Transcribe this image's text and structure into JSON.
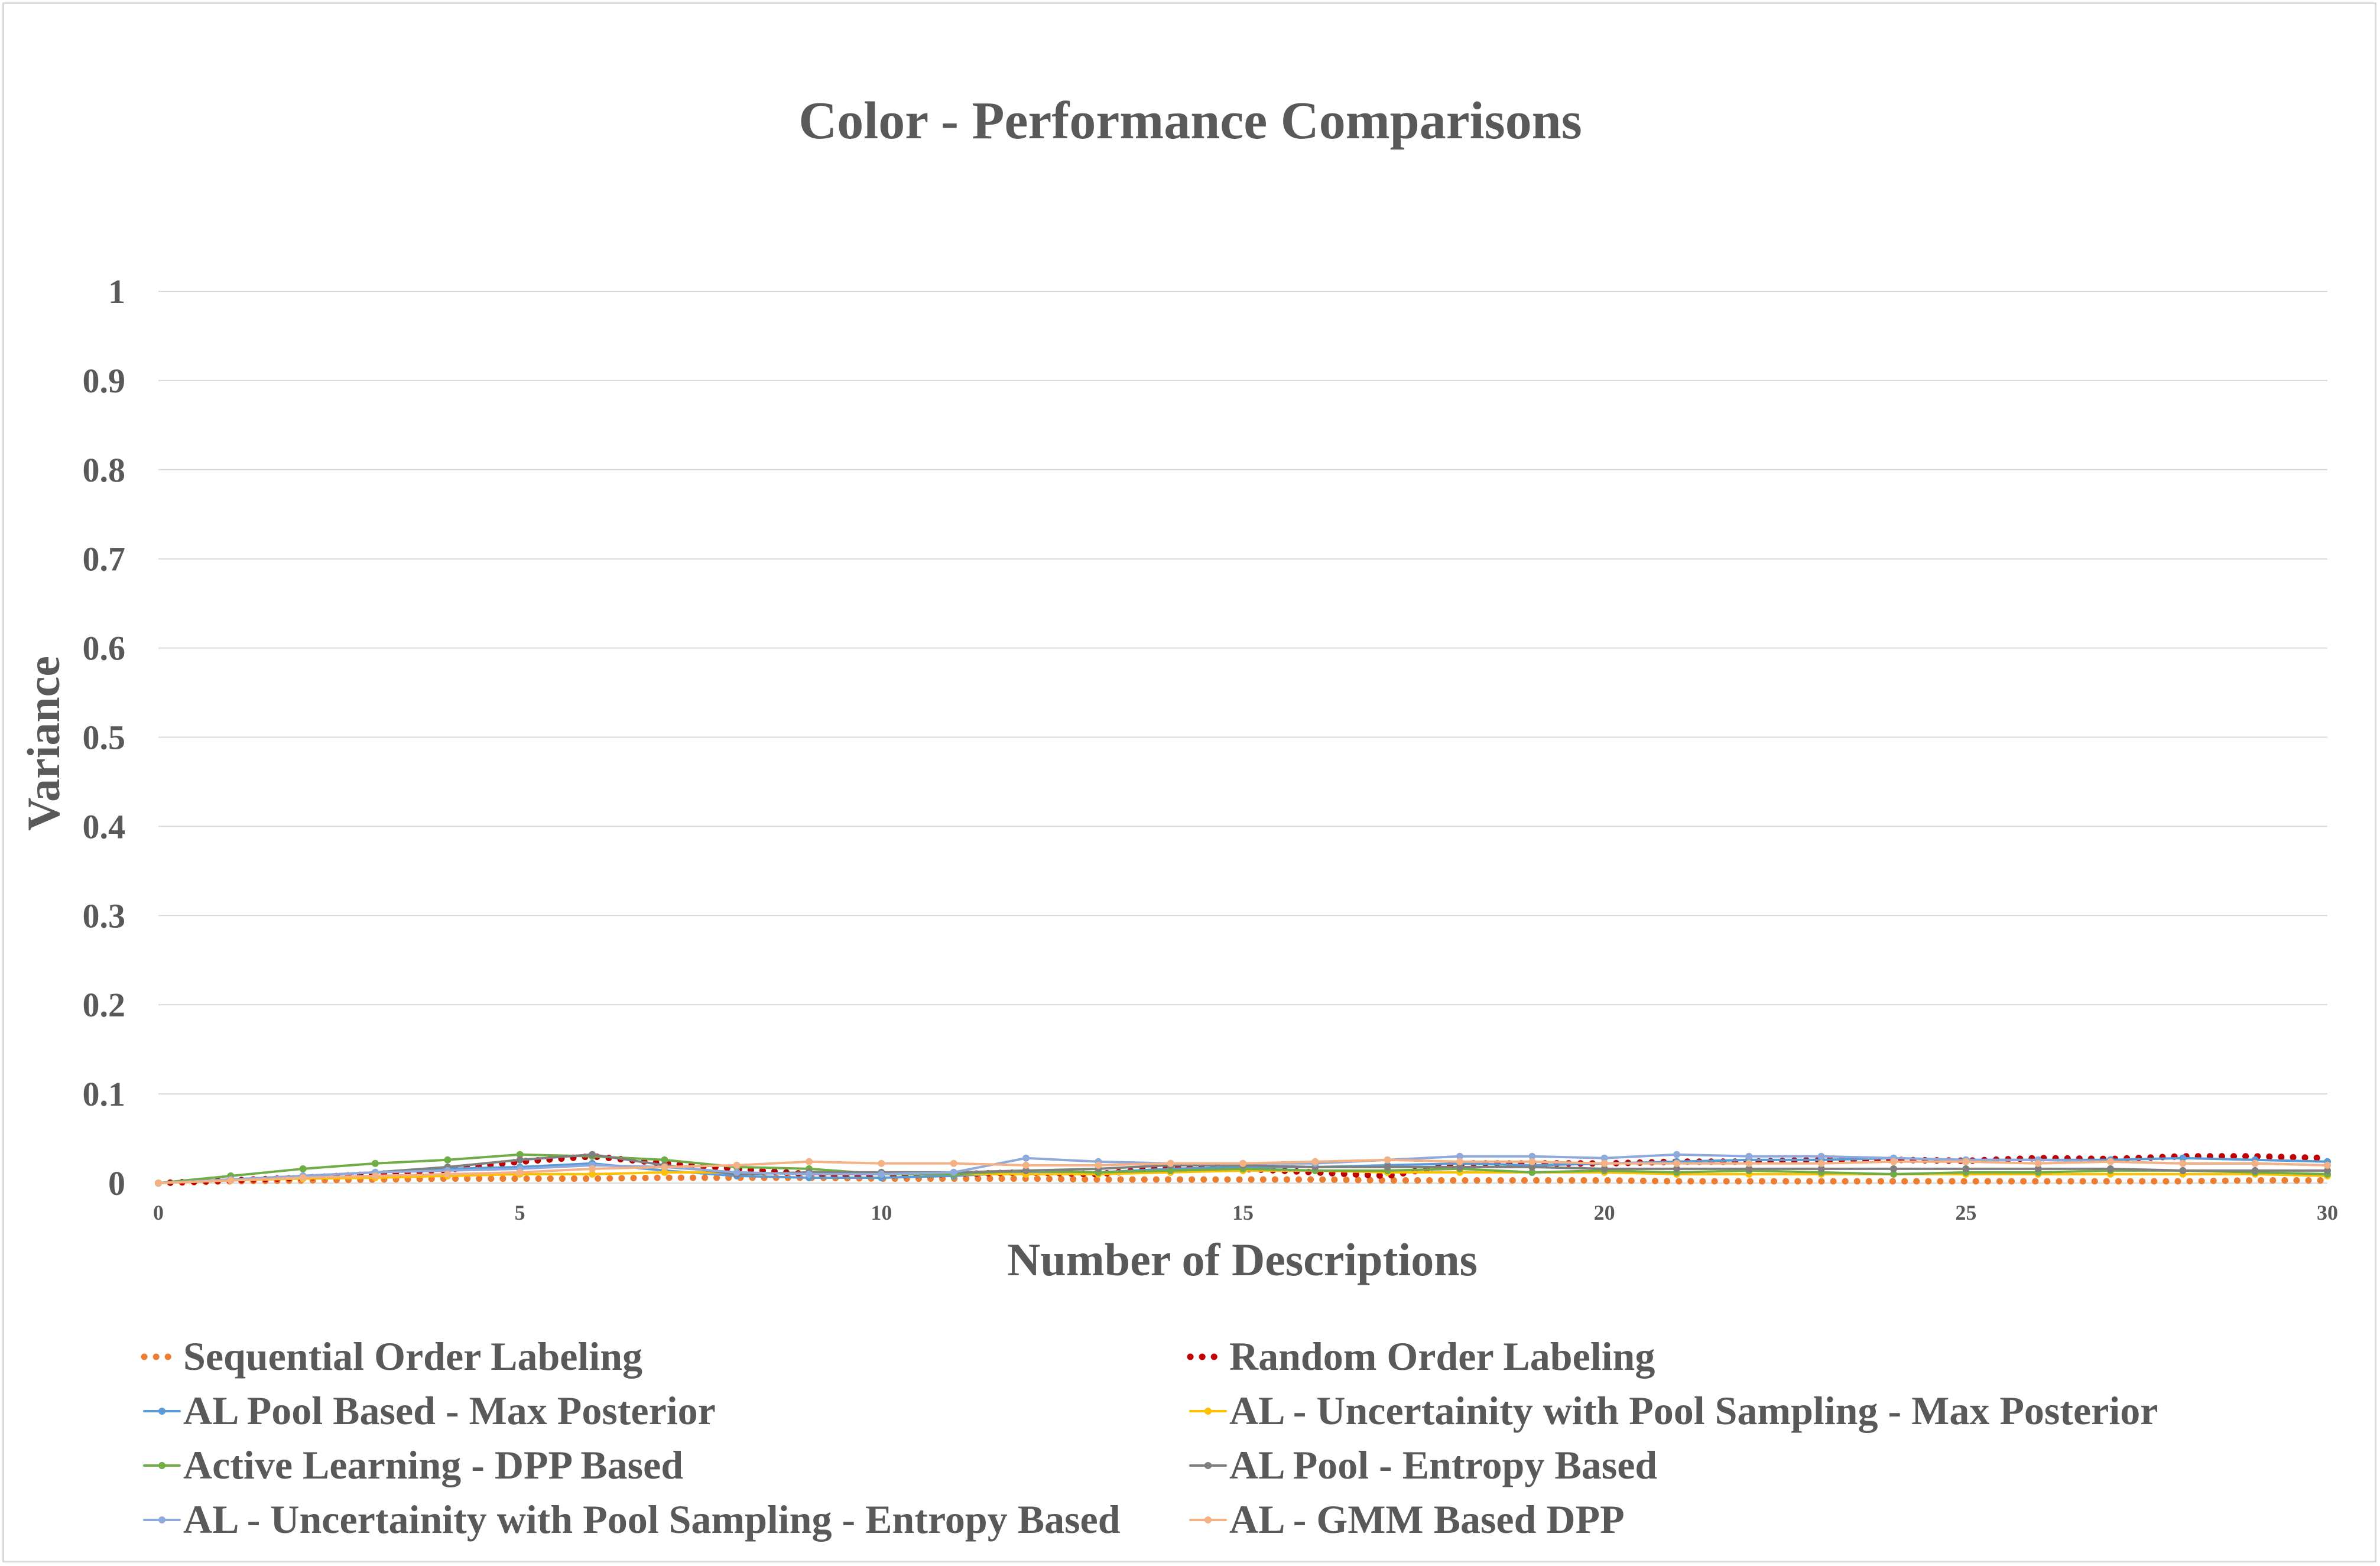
{
  "chart_data": {
    "type": "line",
    "title": "Color - Performance Comparisons",
    "xlabel": "Number of Descriptions",
    "ylabel": "Variance",
    "xlim": [
      0,
      30
    ],
    "ylim": [
      0,
      1
    ],
    "x_ticks": [
      "0",
      "5",
      "10",
      "15",
      "20",
      "25",
      "30"
    ],
    "y_ticks": [
      "0",
      "0.1",
      "0.2",
      "0.3",
      "0.4",
      "0.5",
      "0.6",
      "0.7",
      "0.8",
      "0.9",
      "1"
    ],
    "grid": true,
    "legend_position": "bottom",
    "x": [
      0,
      1,
      2,
      3,
      4,
      5,
      6,
      7,
      8,
      9,
      10,
      11,
      12,
      13,
      14,
      15,
      16,
      17,
      18,
      19,
      20,
      21,
      22,
      23,
      24,
      25,
      26,
      27,
      28,
      29,
      30
    ],
    "series": [
      {
        "name": "Sequential Order Labeling",
        "color": "#ED7D31",
        "style": "dotted",
        "values": [
          0,
          0.002,
          0.003,
          0.004,
          0.005,
          0.005,
          0.005,
          0.006,
          0.006,
          0.006,
          0.005,
          0.005,
          0.005,
          0.004,
          0.004,
          0.004,
          0.004,
          0.003,
          0.003,
          0.003,
          0.003,
          0.002,
          0.002,
          0.002,
          0.002,
          0.002,
          0.002,
          0.002,
          0.002,
          0.003,
          0.003
        ]
      },
      {
        "name": "Random Order Labeling",
        "color": "#C00000",
        "style": "dotted",
        "values": [
          0,
          0.003,
          0.006,
          0.01,
          0.015,
          0.024,
          0.03,
          0.022,
          0.016,
          0.01,
          0.008,
          0.01,
          0.012,
          0.01,
          0.018,
          0.016,
          0.012,
          0.008,
          0.022,
          0.022,
          0.022,
          0.024,
          0.024,
          0.026,
          0.026,
          0.025,
          0.028,
          0.027,
          0.03,
          0.03,
          0.028
        ]
      },
      {
        "name": "AL Pool Based - Max Posterior",
        "color": "#5B9BD5",
        "style": "solid",
        "values": [
          0,
          0.004,
          0.008,
          0.012,
          0.016,
          0.018,
          0.022,
          0.014,
          0.008,
          0.006,
          0.006,
          0.008,
          0.012,
          0.012,
          0.016,
          0.018,
          0.018,
          0.02,
          0.022,
          0.02,
          0.022,
          0.024,
          0.026,
          0.026,
          0.028,
          0.026,
          0.026,
          0.026,
          0.028,
          0.026,
          0.024
        ]
      },
      {
        "name": "AL - Uncertainity with Pool Sampling - Max Posterior",
        "color": "#FFC000",
        "style": "solid",
        "values": [
          0,
          0.003,
          0.005,
          0.006,
          0.008,
          0.01,
          0.01,
          0.012,
          0.012,
          0.01,
          0.01,
          0.01,
          0.01,
          0.01,
          0.012,
          0.014,
          0.014,
          0.012,
          0.012,
          0.012,
          0.012,
          0.01,
          0.01,
          0.01,
          0.01,
          0.01,
          0.01,
          0.01,
          0.01,
          0.01,
          0.008
        ]
      },
      {
        "name": "Active Learning - DPP Based",
        "color": "#70AD47",
        "style": "solid",
        "values": [
          0,
          0.008,
          0.016,
          0.022,
          0.026,
          0.032,
          0.03,
          0.026,
          0.018,
          0.016,
          0.01,
          0.01,
          0.014,
          0.012,
          0.014,
          0.016,
          0.014,
          0.014,
          0.016,
          0.012,
          0.014,
          0.012,
          0.014,
          0.012,
          0.01,
          0.012,
          0.012,
          0.014,
          0.014,
          0.012,
          0.01
        ]
      },
      {
        "name": "AL Pool - Entropy Based",
        "color": "#7F7F7F",
        "style": "solid",
        "values": [
          0,
          0.004,
          0.008,
          0.012,
          0.018,
          0.026,
          0.032,
          0.02,
          0.01,
          0.012,
          0.012,
          0.012,
          0.014,
          0.016,
          0.02,
          0.02,
          0.018,
          0.018,
          0.018,
          0.018,
          0.016,
          0.016,
          0.016,
          0.016,
          0.016,
          0.016,
          0.016,
          0.016,
          0.014,
          0.014,
          0.014
        ]
      },
      {
        "name": "AL - Uncertainity with Pool Sampling - Entropy Based",
        "color": "#8EA9DB",
        "style": "solid",
        "values": [
          0,
          0.004,
          0.008,
          0.012,
          0.014,
          0.016,
          0.02,
          0.018,
          0.012,
          0.01,
          0.01,
          0.012,
          0.028,
          0.024,
          0.022,
          0.022,
          0.022,
          0.026,
          0.03,
          0.03,
          0.028,
          0.032,
          0.03,
          0.03,
          0.028,
          0.026,
          0.026,
          0.024,
          0.022,
          0.022,
          0.02
        ]
      },
      {
        "name": "AL - GMM Based DPP",
        "color": "#F4B183",
        "style": "solid",
        "values": [
          0,
          0.003,
          0.006,
          0.008,
          0.01,
          0.012,
          0.016,
          0.018,
          0.02,
          0.024,
          0.022,
          0.022,
          0.02,
          0.02,
          0.022,
          0.022,
          0.024,
          0.026,
          0.024,
          0.024,
          0.022,
          0.022,
          0.022,
          0.022,
          0.024,
          0.024,
          0.022,
          0.024,
          0.022,
          0.022,
          0.02
        ]
      }
    ]
  }
}
